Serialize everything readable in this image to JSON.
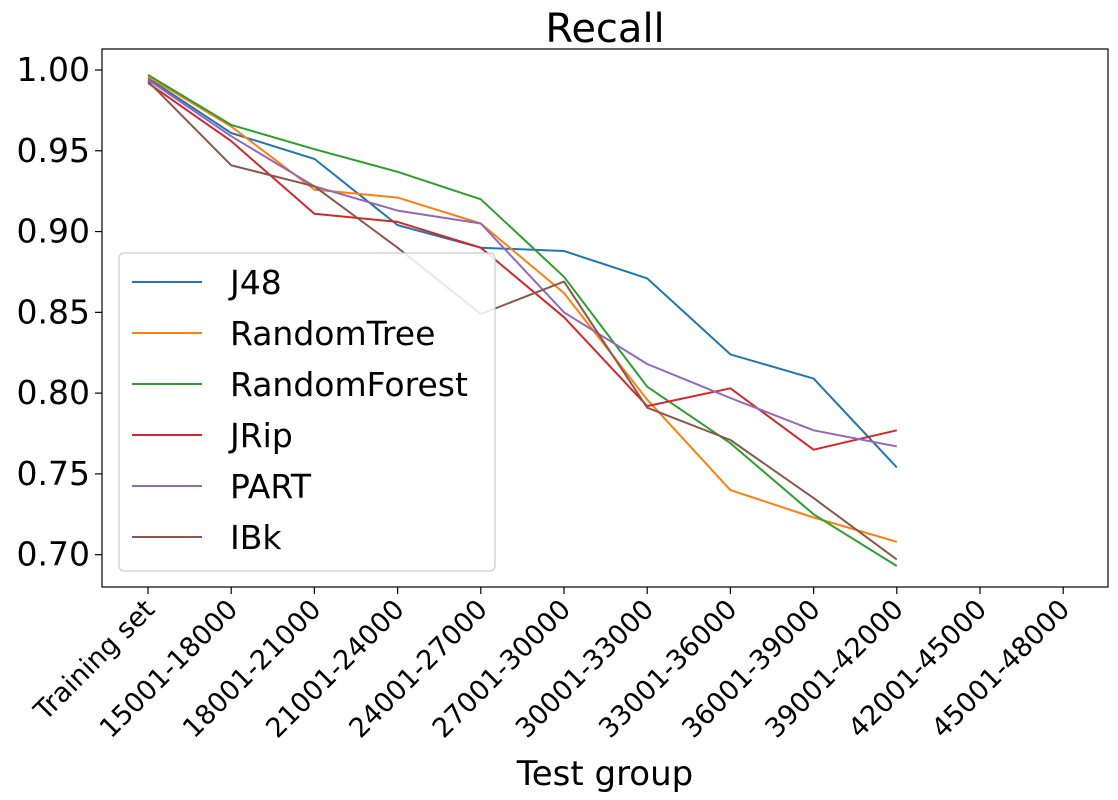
{
  "chart_data": {
    "type": "line",
    "title": "Recall",
    "xlabel": "Test group",
    "ylabel": "",
    "categories": [
      "Training set",
      "15001-18000",
      "18001-21000",
      "21001-24000",
      "24001-27000",
      "27001-30000",
      "30001-33000",
      "33001-36000",
      "36001-39000",
      "39001-42000",
      "42001-45000",
      "45001-48000"
    ],
    "ylim": [
      0.68,
      1.013
    ],
    "yticks": [
      "0.70",
      "0.75",
      "0.80",
      "0.85",
      "0.90",
      "0.95",
      "1.00"
    ],
    "grid": false,
    "legend_position": "lower-left",
    "series": [
      {
        "name": "J48",
        "color": "#1f77b4",
        "values": [
          0.995,
          0.961,
          0.945,
          0.904,
          0.89,
          0.888,
          0.871,
          0.824,
          0.809,
          0.754,
          null,
          null
        ]
      },
      {
        "name": "RandomTree",
        "color": "#ff7f0e",
        "values": [
          0.996,
          0.965,
          0.926,
          0.921,
          0.905,
          0.862,
          0.796,
          0.74,
          0.723,
          0.708,
          null,
          null
        ]
      },
      {
        "name": "RandomForest",
        "color": "#2ca02c",
        "values": [
          0.997,
          0.966,
          0.951,
          0.937,
          0.92,
          0.872,
          0.804,
          0.769,
          0.725,
          0.693,
          null,
          null
        ]
      },
      {
        "name": "JRip",
        "color": "#d62728",
        "values": [
          0.992,
          0.956,
          0.911,
          0.906,
          0.89,
          0.847,
          0.792,
          0.803,
          0.765,
          0.777,
          null,
          null
        ]
      },
      {
        "name": "PART",
        "color": "#9467bd",
        "values": [
          0.994,
          0.959,
          0.928,
          0.913,
          0.905,
          0.85,
          0.818,
          0.797,
          0.777,
          0.767,
          null,
          null
        ]
      },
      {
        "name": "IBk",
        "color": "#8c564b",
        "values": [
          0.993,
          0.941,
          0.928,
          0.89,
          0.849,
          0.869,
          0.791,
          0.771,
          0.735,
          0.697,
          null,
          null
        ]
      }
    ]
  }
}
